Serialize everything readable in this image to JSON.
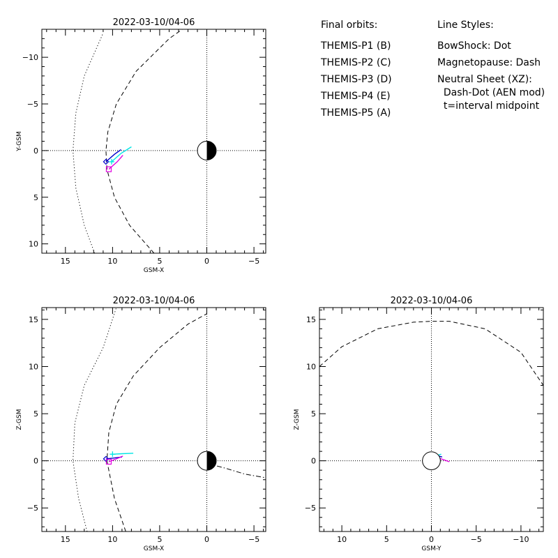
{
  "legend": {
    "orbits_title": "Final orbits:",
    "styles_title": "Line Styles:",
    "probes": [
      {
        "label": "THEMIS-P1 (B)",
        "color": "#ff0000"
      },
      {
        "label": "THEMIS-P2 (C)",
        "color": "#00cc00"
      },
      {
        "label": "THEMIS-P3 (D)",
        "color": "#00e5e5"
      },
      {
        "label": "THEMIS-P4 (E)",
        "color": "#0000cc"
      },
      {
        "label": "THEMIS-P5 (A)",
        "color": "#e000e0"
      }
    ],
    "styles": [
      "BowShock: Dot",
      "Magnetopause: Dash",
      "Neutral Sheet (XZ):",
      "  Dash-Dot (AEN mod)",
      "  t=interval midpoint"
    ]
  },
  "chart_data": [
    {
      "type": "line",
      "title": "2022-03-10/04-06",
      "xlabel": "GSM-X",
      "ylabel": "Y-GSM",
      "xlim": [
        17.5,
        -6.25
      ],
      "ylim": [
        11.0,
        -13.0
      ],
      "xticks": [
        15,
        10,
        5,
        0,
        -5
      ],
      "yticks": [
        -10,
        -5,
        0,
        5,
        10
      ],
      "earth": {
        "radius": 1,
        "night_side": "negative-x"
      },
      "series": [
        {
          "style": "dot",
          "points": [
            [
              11.9,
              11.0
            ],
            [
              13.0,
              8.0
            ],
            [
              13.9,
              4.0
            ],
            [
              14.2,
              0.0
            ],
            [
              13.9,
              -4.0
            ],
            [
              13.0,
              -8.0
            ],
            [
              11.0,
              -12.6
            ]
          ]
        },
        {
          "style": "dash",
          "points": [
            [
              5.6,
              11.0
            ],
            [
              8.2,
              8.0
            ],
            [
              9.8,
              5.0
            ],
            [
              10.6,
              2.0
            ],
            [
              10.7,
              0.0
            ],
            [
              10.5,
              -2.0
            ],
            [
              9.6,
              -5.0
            ],
            [
              7.5,
              -8.5
            ],
            [
              4.0,
              -12.0
            ],
            [
              2.6,
              -13.0
            ]
          ]
        },
        {
          "name": "THEMIS-P3 (D)",
          "color": "#00e5e5",
          "style": "solid",
          "points": [
            [
              10.1,
              1.2
            ],
            [
              9.1,
              0.3
            ],
            [
              8.0,
              -0.4
            ]
          ],
          "end_marker": "plus"
        },
        {
          "name": "THEMIS-P4 (E)",
          "color": "#0000cc",
          "style": "solid",
          "points": [
            [
              10.7,
              1.2
            ],
            [
              9.8,
              0.4
            ],
            [
              9.1,
              -0.1
            ]
          ],
          "end_marker": "diamond"
        },
        {
          "name": "THEMIS-P5 (A)",
          "color": "#e000e0",
          "style": "solid",
          "points": [
            [
              10.4,
              2.0
            ],
            [
              9.5,
              1.2
            ],
            [
              8.9,
              0.5
            ]
          ],
          "end_marker": "square"
        }
      ]
    },
    {
      "type": "line",
      "title": "2022-03-10/04-06",
      "xlabel": "GSM-X",
      "ylabel": "Z-GSM",
      "xlim": [
        17.5,
        -6.25
      ],
      "ylim": [
        -7.5,
        16.25
      ],
      "xticks": [
        15,
        10,
        5,
        0,
        -5
      ],
      "yticks": [
        15,
        10,
        5,
        0,
        -5
      ],
      "earth": {
        "radius": 1,
        "night_side": "negative-x"
      },
      "series": [
        {
          "style": "dot",
          "points": [
            [
              12.7,
              -7.5
            ],
            [
              13.6,
              -4.0
            ],
            [
              14.2,
              0.0
            ],
            [
              14.0,
              4.0
            ],
            [
              13.0,
              8.0
            ],
            [
              11.0,
              12.0
            ],
            [
              9.6,
              16.25
            ]
          ]
        },
        {
          "style": "dash",
          "points": [
            [
              8.6,
              -7.5
            ],
            [
              9.8,
              -4.0
            ],
            [
              10.6,
              0.0
            ],
            [
              10.4,
              3.0
            ],
            [
              9.6,
              6.0
            ],
            [
              7.8,
              9.0
            ],
            [
              5.0,
              12.0
            ],
            [
              2.0,
              14.5
            ],
            [
              0.0,
              15.6
            ]
          ]
        },
        {
          "style": "dash-dot",
          "points": [
            [
              1.0,
              0.0
            ],
            [
              -2.0,
              -0.8
            ],
            [
              -4.0,
              -1.4
            ],
            [
              -6.25,
              -1.8
            ]
          ]
        },
        {
          "name": "THEMIS-P3 (D)",
          "color": "#00e5e5",
          "style": "solid",
          "points": [
            [
              10.0,
              0.7
            ],
            [
              9.0,
              0.75
            ],
            [
              7.8,
              0.8
            ]
          ],
          "end_marker": "plus"
        },
        {
          "name": "THEMIS-P4 (E)",
          "color": "#0000cc",
          "style": "solid",
          "points": [
            [
              10.7,
              0.2
            ],
            [
              9.8,
              0.3
            ],
            [
              9.0,
              0.4
            ]
          ],
          "end_marker": "diamond"
        },
        {
          "name": "THEMIS-P5 (A)",
          "color": "#e000e0",
          "style": "solid",
          "points": [
            [
              10.4,
              -0.1
            ],
            [
              9.6,
              0.2
            ],
            [
              8.9,
              0.5
            ]
          ],
          "end_marker": "square"
        }
      ]
    },
    {
      "type": "line",
      "title": "2022-03-10/04-06",
      "xlabel": "GSM-Y",
      "ylabel": "Z-GSM",
      "xlim": [
        12.5,
        -12.5
      ],
      "ylim": [
        -7.5,
        16.25
      ],
      "xticks": [
        10,
        5,
        0,
        -5,
        -10
      ],
      "yticks": [
        15,
        10,
        5,
        0,
        -5
      ],
      "earth": {
        "radius": 1,
        "night_side": "none"
      },
      "series": [
        {
          "style": "dash",
          "points": [
            [
              12.5,
              10.0
            ],
            [
              10.0,
              12.1
            ],
            [
              6.0,
              14.0
            ],
            [
              2.0,
              14.7
            ],
            [
              0.0,
              14.8
            ],
            [
              -2.0,
              14.8
            ],
            [
              -6.0,
              14.0
            ],
            [
              -10.0,
              11.5
            ],
            [
              -12.5,
              8.0
            ]
          ]
        },
        {
          "name": "THEMIS-P3 (D)",
          "color": "#00e5e5",
          "style": "solid",
          "points": [
            [
              -0.3,
              0.5
            ],
            [
              -0.7,
              0.6
            ],
            [
              -1.1,
              0.7
            ]
          ],
          "end_marker": "plus"
        },
        {
          "name": "THEMIS-P4 (E)",
          "color": "#0000cc",
          "style": "solid",
          "points": [
            [
              0.0,
              0.6
            ],
            [
              -0.6,
              0.55
            ],
            [
              -1.2,
              0.4
            ]
          ],
          "end_marker": "diamond"
        },
        {
          "name": "THEMIS-P5 (A)",
          "color": "#e000e0",
          "style": "solid",
          "points": [
            [
              -0.3,
              0.4
            ],
            [
              -1.1,
              0.2
            ],
            [
              -2.0,
              -0.1
            ]
          ],
          "end_marker": "square"
        }
      ]
    }
  ]
}
